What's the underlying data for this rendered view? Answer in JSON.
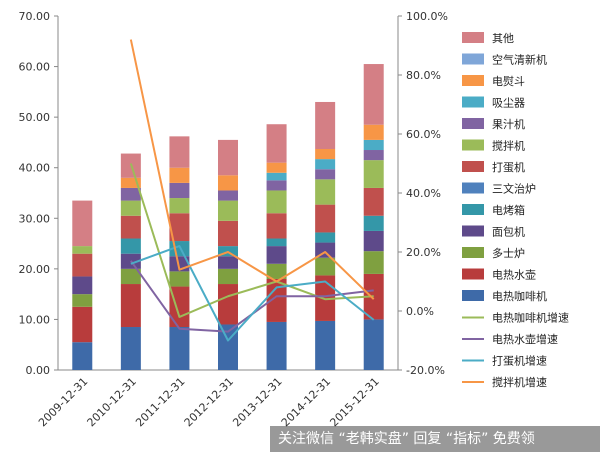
{
  "chart_data": {
    "type": "bar",
    "stacked": true,
    "categories": [
      "2009-12-31",
      "2010-12-31",
      "2011-12-31",
      "2012-12-31",
      "2013-12-31",
      "2014-12-31",
      "2015-12-31"
    ],
    "y_left": {
      "ylim": [
        0,
        70
      ],
      "ticks": [
        "0.00",
        "10.00",
        "20.00",
        "30.00",
        "40.00",
        "50.00",
        "60.00",
        "70.00"
      ]
    },
    "y_right": {
      "ylim": [
        -20,
        100
      ],
      "ticks": [
        "-20.0%",
        "0.0%",
        "20.0%",
        "40.0%",
        "60.0%",
        "80.0%",
        "100.0%"
      ]
    },
    "grid": false,
    "legend_position": "right",
    "series": [
      {
        "name": "电热咖啡机",
        "type": "bar",
        "color": "#3E6AA8",
        "values": [
          5.5,
          8.5,
          8.5,
          9.0,
          9.5,
          9.7,
          10.0
        ]
      },
      {
        "name": "电热水壶",
        "type": "bar",
        "color": "#B83C3C",
        "values": [
          7.0,
          8.5,
          8.0,
          8.0,
          8.5,
          9.0,
          9.0
        ]
      },
      {
        "name": "多士炉",
        "type": "bar",
        "color": "#7FA040",
        "values": [
          2.5,
          3.0,
          3.0,
          3.0,
          3.0,
          3.5,
          4.5
        ]
      },
      {
        "name": "面包机",
        "type": "bar",
        "color": "#5E4A8A",
        "values": [
          3.5,
          3.0,
          3.0,
          2.5,
          3.5,
          3.0,
          4.0
        ]
      },
      {
        "name": "电烤箱",
        "type": "bar",
        "color": "#3497A8",
        "values": [
          0.0,
          3.0,
          3.0,
          2.0,
          1.5,
          2.0,
          3.0
        ]
      },
      {
        "name": "三文治炉",
        "type": "bar",
        "color": "#4F81BD",
        "values": [
          0.0,
          0.0,
          0.0,
          0.0,
          0.0,
          0.0,
          0.0
        ]
      },
      {
        "name": "打蛋机",
        "type": "bar",
        "color": "#C0504D",
        "values": [
          4.5,
          4.5,
          5.5,
          5.0,
          5.0,
          5.5,
          5.5
        ]
      },
      {
        "name": "搅拌机",
        "type": "bar",
        "color": "#9BBB59",
        "values": [
          1.5,
          3.0,
          3.0,
          4.0,
          4.5,
          5.0,
          5.5
        ]
      },
      {
        "name": "果汁机",
        "type": "bar",
        "color": "#8064A2",
        "values": [
          0.0,
          2.5,
          3.0,
          2.0,
          2.0,
          2.0,
          2.0
        ]
      },
      {
        "name": "吸尘器",
        "type": "bar",
        "color": "#4BACC6",
        "values": [
          0.0,
          0.0,
          0.0,
          0.0,
          1.5,
          2.0,
          2.0
        ]
      },
      {
        "name": "电熨斗",
        "type": "bar",
        "color": "#F79646",
        "values": [
          0.0,
          2.0,
          3.0,
          3.0,
          2.0,
          2.0,
          3.0
        ]
      },
      {
        "name": "空气清新机",
        "type": "bar",
        "color": "#7FA6D8",
        "values": [
          0.0,
          0.0,
          0.0,
          0.0,
          0.0,
          0.0,
          0.0
        ]
      },
      {
        "name": "其他",
        "type": "bar",
        "color": "#D47F85",
        "values": [
          9.0,
          4.8,
          6.2,
          7.0,
          7.6,
          9.3,
          12.0
        ]
      },
      {
        "name": "电热咖啡机增速",
        "type": "line",
        "axis": "right",
        "color": "#9BBB59",
        "values": [
          null,
          50.0,
          -2.0,
          5.0,
          10.0,
          4.0,
          5.0
        ]
      },
      {
        "name": "电热水壶增速",
        "type": "line",
        "axis": "right",
        "color": "#8064A2",
        "values": [
          null,
          17.0,
          -6.0,
          -7.0,
          5.0,
          5.0,
          7.0
        ]
      },
      {
        "name": "打蛋机增速",
        "type": "line",
        "axis": "right",
        "color": "#4BACC6",
        "values": [
          null,
          16.0,
          22.0,
          -10.0,
          8.0,
          10.0,
          -3.0
        ]
      },
      {
        "name": "搅拌机增速",
        "type": "line",
        "axis": "right",
        "color": "#F79646",
        "values": [
          null,
          92.0,
          14.0,
          20.0,
          10.0,
          20.0,
          4.0
        ]
      }
    ]
  },
  "watermark": "关注微信 “老韩实盘” 回复 “指标” 免费领"
}
